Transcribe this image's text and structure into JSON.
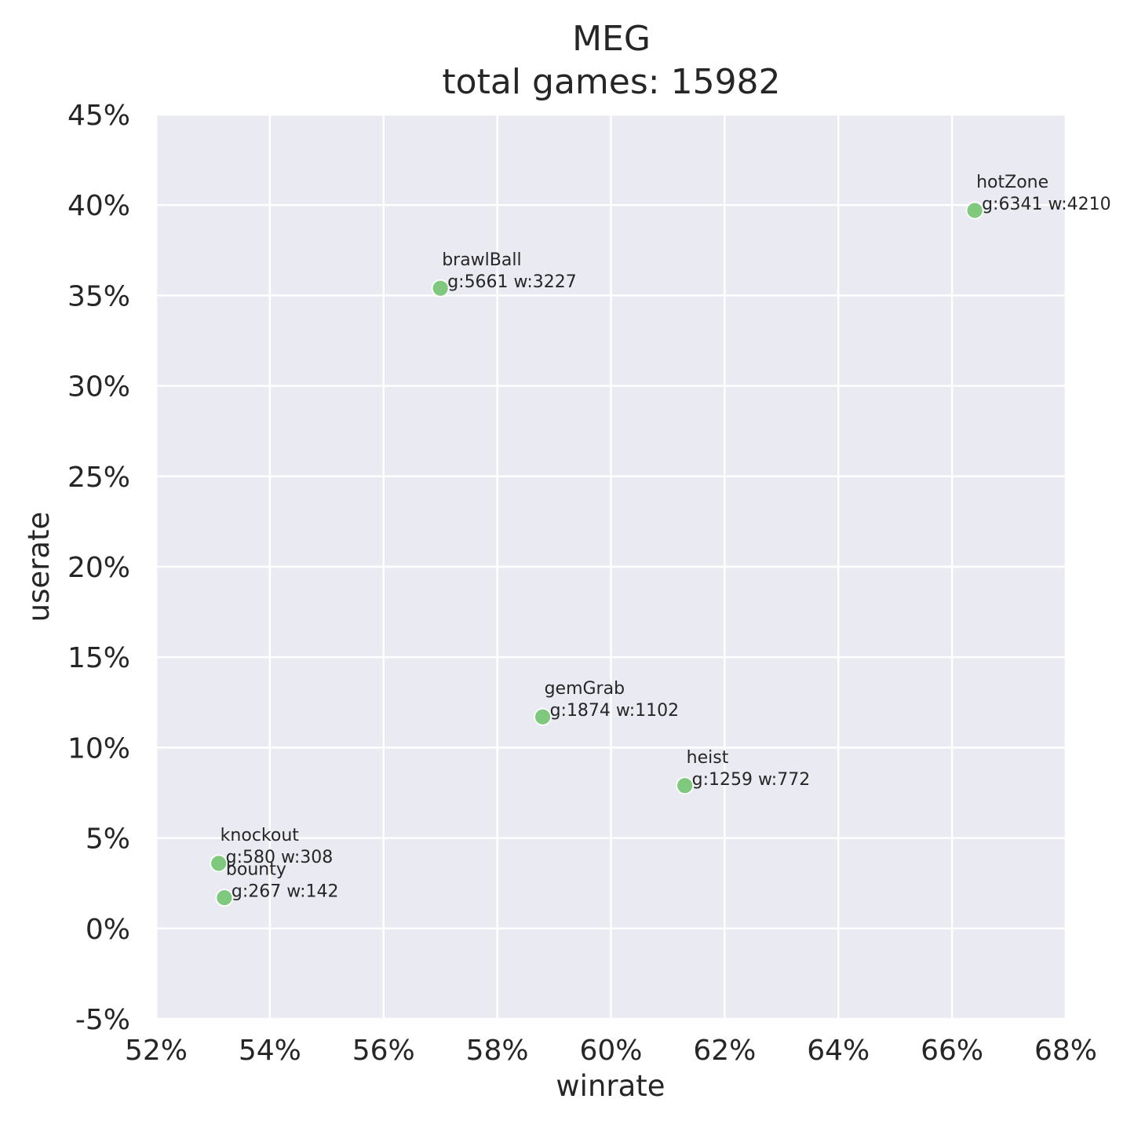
{
  "chart_data": {
    "type": "scatter",
    "title": "MEG",
    "subtitle": "total games: 15982",
    "xlabel": "winrate",
    "ylabel": "userate",
    "xlim": [
      52,
      68
    ],
    "ylim": [
      -5,
      45
    ],
    "x_ticks": [
      52,
      54,
      56,
      58,
      60,
      62,
      64,
      66,
      68
    ],
    "y_ticks": [
      -5,
      0,
      5,
      10,
      15,
      20,
      25,
      30,
      35,
      40,
      45
    ],
    "tick_suffix": "%",
    "grid": true,
    "background_color": "#eaeaf2",
    "grid_color": "#ffffff",
    "point_color": "#7fc97f",
    "points": [
      {
        "name": "hotZone",
        "x": 66.4,
        "y": 39.7,
        "label": "g:6341 w:4210"
      },
      {
        "name": "brawlBall",
        "x": 57.0,
        "y": 35.4,
        "label": "g:5661 w:3227"
      },
      {
        "name": "gemGrab",
        "x": 58.8,
        "y": 11.7,
        "label": "g:1874 w:1102"
      },
      {
        "name": "heist",
        "x": 61.3,
        "y": 7.9,
        "label": "g:1259 w:772"
      },
      {
        "name": "knockout",
        "x": 53.1,
        "y": 3.6,
        "label": "g:580 w:308"
      },
      {
        "name": "bounty",
        "x": 53.2,
        "y": 1.7,
        "label": "g:267 w:142"
      }
    ]
  }
}
